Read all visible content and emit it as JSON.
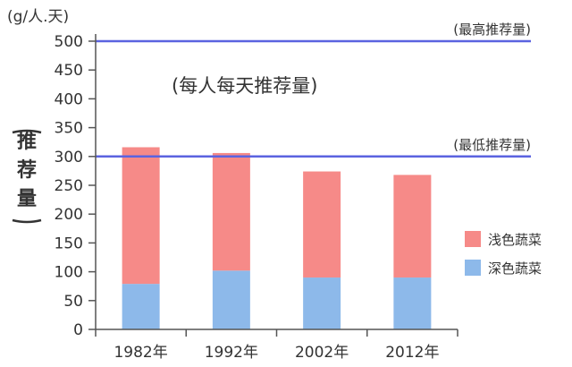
{
  "chart_data": {
    "type": "bar",
    "stacked": true,
    "unit": "(g/人.天)",
    "ylabel": "推荐量",
    "annotation": "(每人每天推荐量)",
    "categories": [
      "1982年",
      "1992年",
      "2002年",
      "2012年"
    ],
    "series": [
      {
        "name": "深色蔬菜",
        "values": [
          79,
          102,
          90,
          90
        ],
        "color": "#8db9ea"
      },
      {
        "name": "浅色蔬菜",
        "values": [
          237,
          204,
          184,
          178
        ],
        "color": "#f68a88"
      }
    ],
    "ylim": [
      0,
      500
    ],
    "yticks": [
      "0",
      "50",
      "100",
      "150",
      "200",
      "250",
      "300",
      "350",
      "400",
      "450",
      "500"
    ],
    "reference_lines": [
      {
        "label": "(最高推荐量)",
        "value": 500,
        "color": "#5b63e0"
      },
      {
        "label": "(最低推荐量)",
        "value": 300,
        "color": "#5b63e0"
      }
    ],
    "legend_position": "right"
  }
}
